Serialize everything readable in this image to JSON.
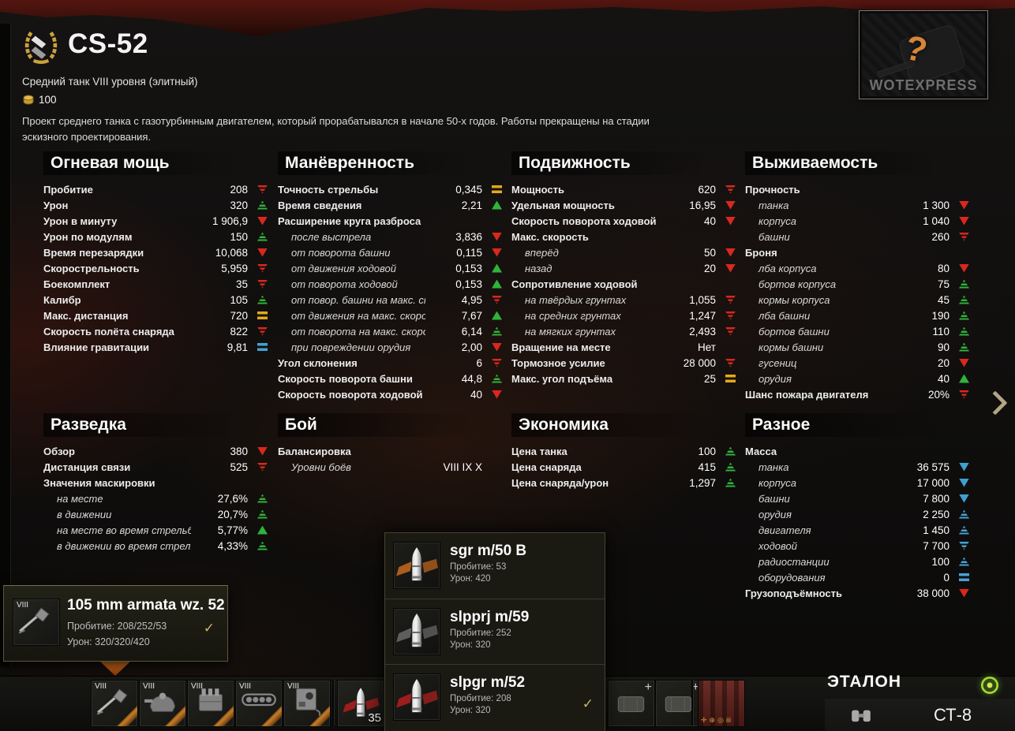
{
  "header": {
    "title": "CS-52",
    "subtitle": "Средний танк VIII уровня (элитный)",
    "price": "100",
    "description": "Проект среднего танка с газотурбинным двигателем, который прорабатывался в начале 50-х годов. Работы прекращены на стадии эскизного проектирования.",
    "preview": {
      "question_mark": "?",
      "watermark": "WOTEXPRESS"
    }
  },
  "colors": {
    "better_green": "#2fb33a",
    "worse_red": "#d9281c",
    "neutral_yellow": "#e2a91c",
    "info_blue": "#45a2d4",
    "gold": "#cbb568"
  },
  "sections": [
    {
      "title": "Огневая мощь",
      "rows": [
        {
          "label": "Пробитие",
          "value": "208",
          "ind": "down2"
        },
        {
          "label": "Урон",
          "value": "320",
          "ind": "up2"
        },
        {
          "label": "Урон в минуту",
          "value": "1 906,9",
          "ind": "down"
        },
        {
          "label": "Урон по модулям",
          "value": "150",
          "ind": "up2"
        },
        {
          "label": "Время перезарядки",
          "value": "10,068",
          "ind": "down"
        },
        {
          "label": "Скорострельность",
          "value": "5,959",
          "ind": "down2"
        },
        {
          "label": "Боекомплект",
          "value": "35",
          "ind": "down2"
        },
        {
          "label": "Калибр",
          "value": "105",
          "ind": "up2"
        },
        {
          "label": "Макс. дистанция",
          "value": "720",
          "ind": "eqy"
        },
        {
          "label": "Скорость полёта снаряда",
          "value": "822",
          "ind": "down2"
        },
        {
          "label": "Влияние гравитации",
          "value": "9,81",
          "ind": "eqb"
        }
      ]
    },
    {
      "title": "Манёвренность",
      "rows": [
        {
          "label": "Точность стрельбы",
          "value": "0,345",
          "ind": "eqy"
        },
        {
          "label": "Время сведения",
          "value": "2,21",
          "ind": "up"
        },
        {
          "label": "Расширение круга разброса",
          "group": true
        },
        {
          "label": "после выстрела",
          "value": "3,836",
          "ind": "down",
          "sub": true
        },
        {
          "label": "от поворота башни",
          "value": "0,115",
          "ind": "down",
          "sub": true
        },
        {
          "label": "от движения ходовой",
          "value": "0,153",
          "ind": "up",
          "sub": true
        },
        {
          "label": "от поворота ходовой",
          "value": "0,153",
          "ind": "up",
          "sub": true
        },
        {
          "label": "от повор. башни на макс. скор.",
          "value": "4,95",
          "ind": "down2",
          "sub": true
        },
        {
          "label": "от движения на макс. скорости",
          "value": "7,67",
          "ind": "up",
          "sub": true
        },
        {
          "label": "от поворота на макс. скорости",
          "value": "6,14",
          "ind": "up2",
          "sub": true
        },
        {
          "label": "при повреждении орудия",
          "value": "2,00",
          "ind": "down",
          "sub": true
        },
        {
          "label": "Угол склонения",
          "value": "6",
          "ind": "down2"
        },
        {
          "label": "Скорость поворота башни",
          "value": "44,8",
          "ind": "up2"
        },
        {
          "label": "Скорость поворота ходовой",
          "value": "40",
          "ind": "down"
        }
      ]
    },
    {
      "title": "Подвижность",
      "rows": [
        {
          "label": "Мощность",
          "value": "620",
          "ind": "down2"
        },
        {
          "label": "Удельная мощность",
          "value": "16,95",
          "ind": "down"
        },
        {
          "label": "Скорость поворота ходовой",
          "value": "40",
          "ind": "down"
        },
        {
          "label": "Макс. скорость",
          "group": true
        },
        {
          "label": "вперёд",
          "value": "50",
          "ind": "down",
          "sub": true
        },
        {
          "label": "назад",
          "value": "20",
          "ind": "down",
          "sub": true
        },
        {
          "label": "Сопротивление ходовой",
          "group": true
        },
        {
          "label": "на твёрдых грунтах",
          "value": "1,055",
          "ind": "down2",
          "sub": true
        },
        {
          "label": "на средних грунтах",
          "value": "1,247",
          "ind": "down2",
          "sub": true
        },
        {
          "label": "на мягких грунтах",
          "value": "2,493",
          "ind": "down2",
          "sub": true
        },
        {
          "label": "Вращение на месте",
          "value": "Нет",
          "ind": "none"
        },
        {
          "label": "Тормозное усилие",
          "value": "28 000",
          "ind": "down2"
        },
        {
          "label": "Макс. угол подъёма",
          "value": "25",
          "ind": "eqy"
        }
      ]
    },
    {
      "title": "Выживаемость",
      "rows": [
        {
          "label": "Прочность",
          "group": true
        },
        {
          "label": "танка",
          "value": "1 300",
          "ind": "down",
          "sub": true
        },
        {
          "label": "корпуса",
          "value": "1 040",
          "ind": "down",
          "sub": true
        },
        {
          "label": "башни",
          "value": "260",
          "ind": "down2",
          "sub": true
        },
        {
          "label": "Броня",
          "group": true
        },
        {
          "label": "лба корпуса",
          "value": "80",
          "ind": "down",
          "sub": true
        },
        {
          "label": "бортов корпуса",
          "value": "75",
          "ind": "up2",
          "sub": true
        },
        {
          "label": "кормы корпуса",
          "value": "45",
          "ind": "up2",
          "sub": true
        },
        {
          "label": "лба башни",
          "value": "190",
          "ind": "up2",
          "sub": true
        },
        {
          "label": "бортов башни",
          "value": "110",
          "ind": "up2",
          "sub": true
        },
        {
          "label": "кормы башни",
          "value": "90",
          "ind": "up2",
          "sub": true
        },
        {
          "label": "гусениц",
          "value": "20",
          "ind": "down",
          "sub": true
        },
        {
          "label": "орудия",
          "value": "40",
          "ind": "up",
          "sub": true
        },
        {
          "label": "Шанс пожара двигателя",
          "value": "20%",
          "ind": "down2"
        }
      ]
    },
    {
      "title": "Разведка",
      "rows": [
        {
          "label": "Обзор",
          "value": "380",
          "ind": "down"
        },
        {
          "label": "Дистанция связи",
          "value": "525",
          "ind": "down2"
        },
        {
          "label": "Значения маскировки",
          "group": true
        },
        {
          "label": "на месте",
          "value": "27,6%",
          "ind": "up2",
          "sub": true
        },
        {
          "label": "в движении",
          "value": "20,7%",
          "ind": "up2",
          "sub": true
        },
        {
          "label": "на месте во время стрельбы",
          "value": "5,77%",
          "ind": "up",
          "sub": true
        },
        {
          "label": "в движении во время стрельбы",
          "value": "4,33%",
          "ind": "up2",
          "sub": true
        }
      ]
    },
    {
      "title": "Бой",
      "rows": [
        {
          "label": "Балансировка",
          "group": true
        },
        {
          "label": "Уровни боёв",
          "value": "VIII IX X",
          "ind": "none",
          "sub": true
        }
      ]
    },
    {
      "title": "Экономика",
      "rows": [
        {
          "label": "Цена танка",
          "value": "100",
          "ind": "up2"
        },
        {
          "label": "Цена снаряда",
          "value": "415",
          "ind": "up2"
        },
        {
          "label": "Цена снаряда/урон",
          "value": "1,297",
          "ind": "up2"
        }
      ]
    },
    {
      "title": "Разное",
      "rows": [
        {
          "label": "Масса",
          "group": true
        },
        {
          "label": "танка",
          "value": "36 575",
          "ind": "bdown",
          "sub": true
        },
        {
          "label": "корпуса",
          "value": "17 000",
          "ind": "bdown",
          "sub": true
        },
        {
          "label": "башни",
          "value": "7 800",
          "ind": "bdown",
          "sub": true
        },
        {
          "label": "орудия",
          "value": "2 250",
          "ind": "bup2",
          "sub": true
        },
        {
          "label": "двигателя",
          "value": "1 450",
          "ind": "bup2",
          "sub": true
        },
        {
          "label": "ходовой",
          "value": "7 700",
          "ind": "bdown2",
          "sub": true
        },
        {
          "label": "радиостанции",
          "value": "100",
          "ind": "bup2",
          "sub": true
        },
        {
          "label": "оборудования",
          "value": "0",
          "ind": "eqb",
          "sub": true
        },
        {
          "label": "Грузоподъёмность",
          "value": "38 000",
          "ind": "down"
        }
      ]
    }
  ],
  "gun_tooltip": {
    "tier": "VIII",
    "name": "105 mm armata wz. 52",
    "pen_label": "Пробитие:",
    "pen": "208/252/53",
    "dmg_label": "Урон:",
    "dmg": "320/320/420",
    "check_glyph": "✓"
  },
  "shell_popup": {
    "pen_label": "Пробитие:",
    "dmg_label": "Урон:",
    "check_glyph": "✓",
    "items": [
      {
        "name": "sgr m/50 B",
        "penetration": "53",
        "damage": "420",
        "type": "he",
        "selected": false
      },
      {
        "name": "slpprj m/59",
        "penetration": "252",
        "damage": "320",
        "type": "apcr",
        "selected": false
      },
      {
        "name": "slpgr m/52",
        "penetration": "208",
        "damage": "320",
        "type": "ap",
        "selected": true
      }
    ]
  },
  "bottom_bar": {
    "modules": [
      {
        "tier": "VIII",
        "key": "gun"
      },
      {
        "tier": "VIII",
        "key": "turret"
      },
      {
        "tier": "VIII",
        "key": "engine"
      },
      {
        "tier": "VIII",
        "key": "tracks"
      },
      {
        "tier": "VIII",
        "key": "radio"
      }
    ],
    "ammo_count": "35",
    "reference_label": "ЭТАЛОН",
    "crew_label": "СТ-8"
  }
}
